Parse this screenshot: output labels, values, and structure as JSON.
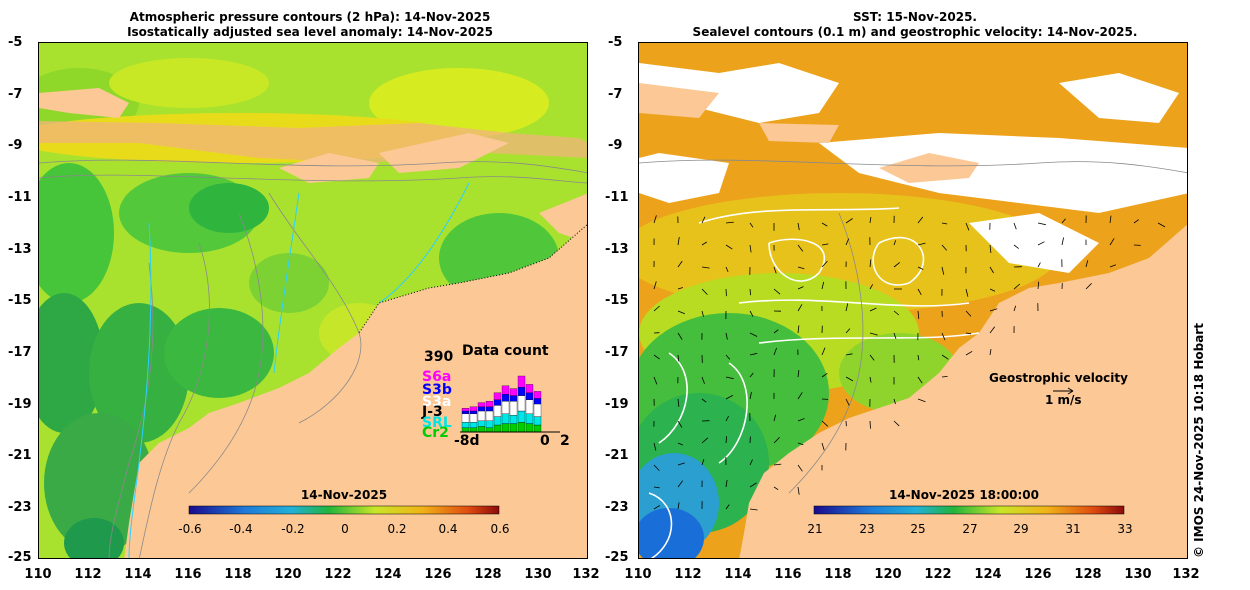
{
  "left_panel": {
    "title_line1": "Atmospheric pressure contours (2 hPa): 14-Nov-2025",
    "title_line2": "Isostatically adjusted sea level anomaly: 14-Nov-2025",
    "colorbar": {
      "title": "14-Nov-2025",
      "labels": [
        "-0.6",
        "-0.4",
        "-0.2",
        "0",
        "0.2",
        "0.4",
        "0.6"
      ]
    },
    "data_count": {
      "title": "Data count",
      "max_label": "390",
      "missions": [
        "S6a",
        "S3b",
        "S3a",
        "J-3",
        "SRL",
        "Cr2"
      ],
      "mission_colors": [
        "#ff00ff",
        "#0000ff",
        "#ffffff",
        "#000000",
        "#00e5e5",
        "#00cc00"
      ],
      "axis_start": "-8d",
      "axis_zero": "0",
      "axis_end": "2"
    }
  },
  "right_panel": {
    "title_line1": "SST: 15-Nov-2025.",
    "title_line2": "Sealevel contours (0.1 m) and geostrophic velocity: 14-Nov-2025.",
    "colorbar": {
      "title": "14-Nov-2025 18:00:00",
      "labels": [
        "21",
        "23",
        "25",
        "27",
        "29",
        "31",
        "33"
      ]
    },
    "velocity_legend_title": "Geostrophic velocity",
    "velocity_legend_scale": "1 m/s"
  },
  "axes": {
    "y_labels": [
      "-5",
      "-7",
      "-9",
      "-11",
      "-13",
      "-15",
      "-17",
      "-19",
      "-21",
      "-23",
      "-25"
    ],
    "x_labels": [
      "110",
      "112",
      "114",
      "116",
      "118",
      "120",
      "122",
      "124",
      "126",
      "128",
      "130",
      "132"
    ]
  },
  "credit": "© IMOS 24-Nov-2025 10:18 Hobart",
  "colors": {
    "land": "#fcc896",
    "sea_left": "#a6e22c",
    "sea_right": "#f0a020"
  }
}
